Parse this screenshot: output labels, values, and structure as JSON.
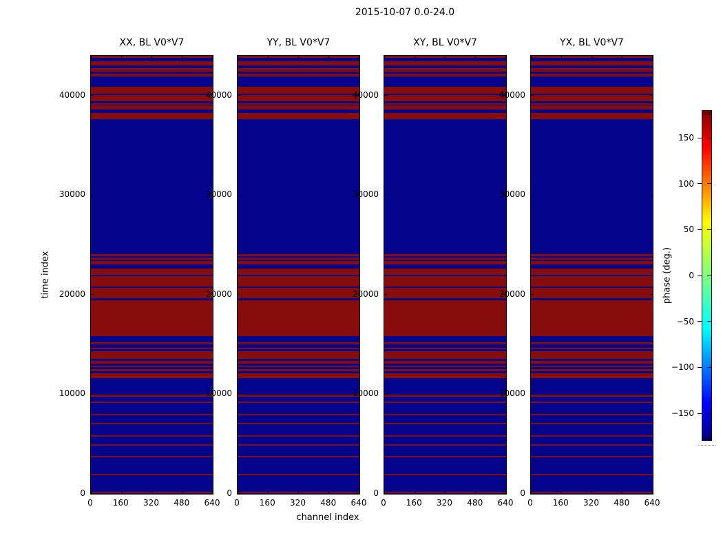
{
  "figure": {
    "suptitle": "2015-10-07 0.0-24.0",
    "xlabel": "channel index",
    "ylabel": "time index"
  },
  "colors": {
    "phase_positive_red": "#870c0c",
    "phase_negative_blue": "#04048c",
    "axis": "#000000",
    "background": "#ffffff"
  },
  "colorbar": {
    "label": "phase (deg.)",
    "tick_labels": [
      "150",
      "100",
      "50",
      "0",
      "−50",
      "−100",
      "−150"
    ],
    "tick_values": [
      150,
      100,
      50,
      0,
      -50,
      -100,
      -150
    ],
    "range": [
      -180,
      180
    ],
    "colormap": "jet",
    "gradient_stops": [
      "#000080",
      "#0000ff",
      "#00ffff",
      "#80ff80",
      "#ffff00",
      "#ff0000",
      "#800000"
    ],
    "gradient_positions": [
      0,
      11,
      34,
      50,
      66,
      89,
      100
    ]
  },
  "chart_data": {
    "type": "heatmap",
    "title": "2015-10-07 0.0-24.0",
    "xlabel": "channel index",
    "ylabel": "time index",
    "value_label": "phase (deg.)",
    "value_range": [
      -180,
      180
    ],
    "colormap": "jet",
    "xlim": [
      0,
      640
    ],
    "ylim": [
      0,
      44000
    ],
    "x_ticks": [
      0,
      160,
      320,
      480,
      640
    ],
    "y_ticks": [
      0,
      10000,
      20000,
      30000,
      40000
    ],
    "panels": [
      {
        "label": "XX, BL V0*V7"
      },
      {
        "label": "YY, BL V0*V7"
      },
      {
        "label": "XY, BL V0*V7"
      },
      {
        "label": "YX, BL V0*V7"
      }
    ],
    "note": "All four panels show the identical pattern of horizontal phase bands; bands listed as [time_start, time_end, phase_deg] from bottom (0) to top (44000); phase is uniform across all 640 channels",
    "bands": [
      [
        0,
        70,
        -180
      ],
      [
        70,
        210,
        180
      ],
      [
        210,
        1860,
        -180
      ],
      [
        1860,
        2000,
        180
      ],
      [
        2000,
        3660,
        -180
      ],
      [
        3660,
        3790,
        180
      ],
      [
        3790,
        4830,
        -180
      ],
      [
        4830,
        4970,
        180
      ],
      [
        4970,
        5720,
        -180
      ],
      [
        5720,
        5860,
        180
      ],
      [
        5860,
        6970,
        -180
      ],
      [
        6970,
        7100,
        180
      ],
      [
        7100,
        7860,
        -180
      ],
      [
        7860,
        8000,
        180
      ],
      [
        8000,
        9100,
        -180
      ],
      [
        9100,
        9240,
        180
      ],
      [
        9240,
        9790,
        -180
      ],
      [
        9790,
        9930,
        180
      ],
      [
        9930,
        11590,
        -180
      ],
      [
        11590,
        12140,
        180
      ],
      [
        12140,
        12350,
        -180
      ],
      [
        12350,
        12550,
        180
      ],
      [
        12550,
        12760,
        -180
      ],
      [
        12760,
        12900,
        180
      ],
      [
        12900,
        13100,
        -180
      ],
      [
        13100,
        13380,
        180
      ],
      [
        13380,
        13590,
        -180
      ],
      [
        13590,
        14340,
        180
      ],
      [
        14340,
        14550,
        -180
      ],
      [
        14550,
        14690,
        180
      ],
      [
        14690,
        15030,
        -180
      ],
      [
        15030,
        15240,
        180
      ],
      [
        15240,
        15860,
        -180
      ],
      [
        15860,
        19450,
        180
      ],
      [
        19450,
        19660,
        -180
      ],
      [
        19660,
        20690,
        180
      ],
      [
        20690,
        20830,
        -180
      ],
      [
        20830,
        21860,
        180
      ],
      [
        21860,
        22000,
        -180
      ],
      [
        22000,
        22620,
        180
      ],
      [
        22620,
        23030,
        -180
      ],
      [
        23030,
        23380,
        180
      ],
      [
        23380,
        23520,
        -180
      ],
      [
        23520,
        23720,
        180
      ],
      [
        23720,
        23860,
        -180
      ],
      [
        23860,
        24070,
        180
      ],
      [
        24070,
        37660,
        -180
      ],
      [
        37660,
        38280,
        180
      ],
      [
        38280,
        38620,
        -180
      ],
      [
        38620,
        39030,
        180
      ],
      [
        39030,
        39100,
        -180
      ],
      [
        39100,
        39240,
        180
      ],
      [
        39240,
        39450,
        -180
      ],
      [
        39450,
        40070,
        180
      ],
      [
        40070,
        40210,
        -180
      ],
      [
        40210,
        40900,
        180
      ],
      [
        40900,
        41930,
        -180
      ],
      [
        41930,
        42210,
        180
      ],
      [
        42210,
        42410,
        -180
      ],
      [
        42410,
        42760,
        180
      ],
      [
        42760,
        43030,
        -180
      ],
      [
        43030,
        43450,
        180
      ],
      [
        43450,
        43790,
        -180
      ],
      [
        43790,
        44000,
        180
      ]
    ]
  }
}
